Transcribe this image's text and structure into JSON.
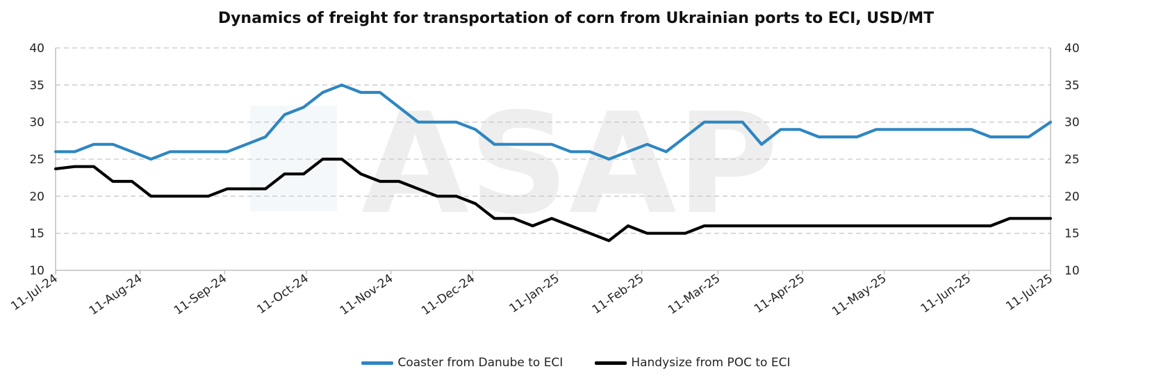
{
  "chart_data": {
    "type": "line",
    "title": "Dynamics of freight for transportation of corn from Ukrainian ports to ECI, USD/MT",
    "xlabel": "",
    "ylabel": "",
    "ylim": [
      10,
      40
    ],
    "yticks": [
      "10",
      "15",
      "20",
      "25",
      "30",
      "35",
      "40"
    ],
    "y2ticks": [
      "10",
      "15",
      "20",
      "25",
      "30",
      "35",
      "40"
    ],
    "xlim": [
      "2024-07-11",
      "2025-07-11"
    ],
    "xticks": [
      {
        "date": "2024-07-11",
        "label": "11-Jul-24"
      },
      {
        "date": "2024-08-11",
        "label": "11-Aug-24"
      },
      {
        "date": "2024-09-11",
        "label": "11-Sep-24"
      },
      {
        "date": "2024-10-11",
        "label": "11-Oct-24"
      },
      {
        "date": "2024-11-11",
        "label": "11-Nov-24"
      },
      {
        "date": "2024-12-11",
        "label": "11-Dec-24"
      },
      {
        "date": "2025-01-11",
        "label": "11-Jan-25"
      },
      {
        "date": "2025-02-11",
        "label": "11-Feb-25"
      },
      {
        "date": "2025-03-11",
        "label": "11-Mar-25"
      },
      {
        "date": "2025-04-11",
        "label": "11-Apr-25"
      },
      {
        "date": "2025-05-11",
        "label": "11-May-25"
      },
      {
        "date": "2025-06-11",
        "label": "11-Jun-25"
      },
      {
        "date": "2025-07-11",
        "label": "11-Jul-25"
      }
    ],
    "grid": true,
    "legend_position": "bottom",
    "watermark": "ASAP",
    "x": [
      "2024-07-11",
      "2024-07-18",
      "2024-07-25",
      "2024-08-01",
      "2024-08-08",
      "2024-08-15",
      "2024-08-22",
      "2024-08-29",
      "2024-09-05",
      "2024-09-12",
      "2024-09-19",
      "2024-09-26",
      "2024-10-03",
      "2024-10-10",
      "2024-10-17",
      "2024-10-24",
      "2024-10-31",
      "2024-11-07",
      "2024-11-14",
      "2024-11-21",
      "2024-11-28",
      "2024-12-05",
      "2024-12-12",
      "2024-12-19",
      "2024-12-26",
      "2025-01-02",
      "2025-01-09",
      "2025-01-16",
      "2025-01-23",
      "2025-01-30",
      "2025-02-06",
      "2025-02-13",
      "2025-02-20",
      "2025-02-27",
      "2025-03-06",
      "2025-03-13",
      "2025-03-20",
      "2025-03-27",
      "2025-04-03",
      "2025-04-10",
      "2025-04-17",
      "2025-04-24",
      "2025-05-01",
      "2025-05-08",
      "2025-05-15",
      "2025-05-22",
      "2025-05-29",
      "2025-06-05",
      "2025-06-12",
      "2025-06-19",
      "2025-06-26",
      "2025-07-03",
      "2025-07-11"
    ],
    "series": [
      {
        "name": "Coaster from Danube to ECI",
        "color": "#2e86c1",
        "values": [
          26,
          26,
          27,
          27,
          26,
          25,
          26,
          26,
          26,
          26,
          27,
          28,
          31,
          32,
          34,
          35,
          34,
          34,
          32,
          30,
          30,
          30,
          29,
          27,
          27,
          27,
          27,
          26,
          26,
          25,
          26,
          27,
          26,
          28,
          30,
          30,
          30,
          27,
          29,
          29,
          28,
          28,
          28,
          29,
          29,
          29,
          29,
          29,
          29,
          28,
          28,
          28,
          30
        ]
      },
      {
        "name": "Handysize from POC to ECI",
        "color": "#000000",
        "values": [
          23.7,
          24,
          24,
          22,
          22,
          20,
          20,
          20,
          20,
          21,
          21,
          21,
          23,
          23,
          25,
          25,
          23,
          22,
          22,
          21,
          20,
          20,
          19,
          17,
          17,
          16,
          17,
          16,
          15,
          14,
          16,
          15,
          15,
          15,
          16,
          16,
          16,
          16,
          16,
          16,
          16,
          16,
          16,
          16,
          16,
          16,
          16,
          16,
          16,
          16,
          17,
          17,
          17
        ]
      }
    ]
  }
}
